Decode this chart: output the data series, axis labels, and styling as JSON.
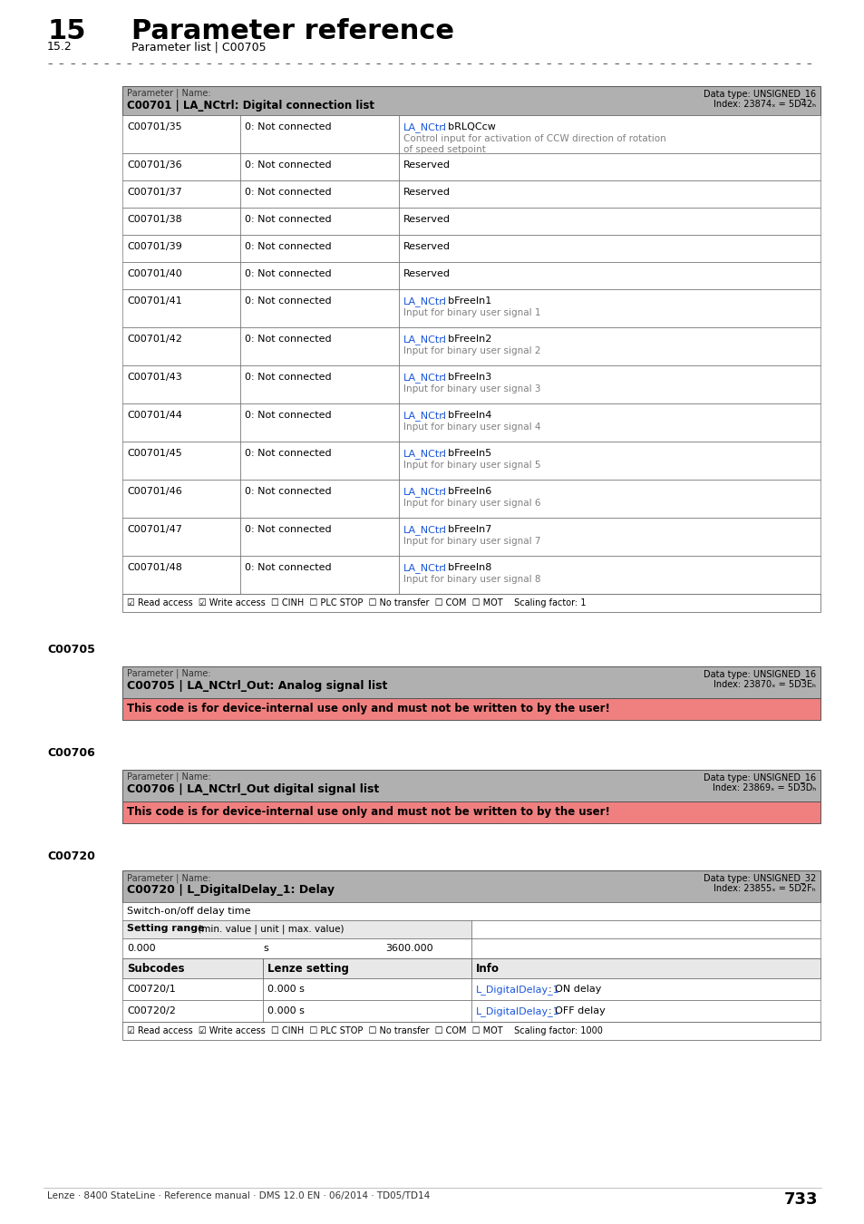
{
  "title_number": "15",
  "title_text": "Parameter reference",
  "subtitle_number": "15.2",
  "subtitle_text": "Parameter list | C00705",
  "page_number": "733",
  "footer_text": "Lenze · 8400 StateLine · Reference manual · DMS 12.0 EN · 06/2014 · TD05/TD14",
  "table1": {
    "header_param": "Parameter | Name:",
    "header_code": "C00701 | LA_NCtrl: Digital connection list",
    "header_dtype": "Data type: UNSIGNED_16",
    "header_index": "Index: 23874ₓ = 5D42ₕ",
    "rows": [
      {
        "code": "C00701/35",
        "setting": "0: Not connected",
        "info_blue": "LA_NCtrl: bRLQCcw",
        "info_gray": "Control input for activation of CCW direction of rotation\nof speed setpoint"
      },
      {
        "code": "C00701/36",
        "setting": "0: Not connected",
        "info_blue": "",
        "info_gray": "Reserved"
      },
      {
        "code": "C00701/37",
        "setting": "0: Not connected",
        "info_blue": "",
        "info_gray": "Reserved"
      },
      {
        "code": "C00701/38",
        "setting": "0: Not connected",
        "info_blue": "",
        "info_gray": "Reserved"
      },
      {
        "code": "C00701/39",
        "setting": "0: Not connected",
        "info_blue": "",
        "info_gray": "Reserved"
      },
      {
        "code": "C00701/40",
        "setting": "0: Not connected",
        "info_blue": "",
        "info_gray": "Reserved"
      },
      {
        "code": "C00701/41",
        "setting": "0: Not connected",
        "info_blue": "LA_NCtrl: bFreeIn1",
        "info_gray": "Input for binary user signal 1"
      },
      {
        "code": "C00701/42",
        "setting": "0: Not connected",
        "info_blue": "LA_NCtrl: bFreeIn2",
        "info_gray": "Input for binary user signal 2"
      },
      {
        "code": "C00701/43",
        "setting": "0: Not connected",
        "info_blue": "LA_NCtrl: bFreeIn3",
        "info_gray": "Input for binary user signal 3"
      },
      {
        "code": "C00701/44",
        "setting": "0: Not connected",
        "info_blue": "LA_NCtrl: bFreeIn4",
        "info_gray": "Input for binary user signal 4"
      },
      {
        "code": "C00701/45",
        "setting": "0: Not connected",
        "info_blue": "LA_NCtrl: bFreeIn5",
        "info_gray": "Input for binary user signal 5"
      },
      {
        "code": "C00701/46",
        "setting": "0: Not connected",
        "info_blue": "LA_NCtrl: bFreeIn6",
        "info_gray": "Input for binary user signal 6"
      },
      {
        "code": "C00701/47",
        "setting": "0: Not connected",
        "info_blue": "LA_NCtrl: bFreeIn7",
        "info_gray": "Input for binary user signal 7"
      },
      {
        "code": "C00701/48",
        "setting": "0: Not connected",
        "info_blue": "LA_NCtrl: bFreeIn8",
        "info_gray": "Input for binary user signal 8"
      }
    ],
    "footer": "☑ Read access  ☑ Write access  ☐ CINH  ☐ PLC STOP  ☐ No transfer  ☐ COM  ☐ MOT    Scaling factor: 1"
  },
  "section_c00705": {
    "label": "C00705",
    "header_param": "Parameter | Name:",
    "header_code": "C00705 | LA_NCtrl_Out: Analog signal list",
    "header_dtype": "Data type: UNSIGNED_16",
    "header_index": "Index: 23870ₓ = 5D3Eₕ",
    "warning": "This code is for device-internal use only and must not be written to by the user!"
  },
  "section_c00706": {
    "label": "C00706",
    "header_param": "Parameter | Name:",
    "header_code": "C00706 | LA_NCtrl_Out digital signal list",
    "header_dtype": "Data type: UNSIGNED_16",
    "header_index": "Index: 23869ₓ = 5D3Dₕ",
    "warning": "This code is for device-internal use only and must not be written to by the user!"
  },
  "section_c00720": {
    "label": "C00720",
    "header_param": "Parameter | Name:",
    "header_code": "C00720 | L_DigitalDelay_1: Delay",
    "header_dtype": "Data type: UNSIGNED_32",
    "header_index": "Index: 23855ₓ = 5D2Fₕ",
    "description": "Switch-on/off delay time",
    "setting_range_label": "Setting range (min. value | unit | max. value)",
    "setting_min": "0.000",
    "setting_unit": "s",
    "setting_max": "3600.000",
    "subcodes_header": [
      "Subcodes",
      "Lenze setting",
      "Info"
    ],
    "subcodes": [
      {
        "code": "C00720/1",
        "setting": "0.000 s",
        "info_blue": "L_DigitalDelay_1:",
        "info_text": "ON delay"
      },
      {
        "code": "C00720/2",
        "setting": "0.000 s",
        "info_blue": "L_DigitalDelay_1:",
        "info_text": "OFF delay"
      }
    ],
    "footer": "☑ Read access  ☑ Write access  ☐ CINH  ☐ PLC STOP  ☐ No transfer  ☐ COM  ☐ MOT    Scaling factor: 1000"
  },
  "colors": {
    "header_bg": "#b0b0b0",
    "row_bg_white": "#ffffff",
    "row_bg_light": "#f0f0f0",
    "border": "#555555",
    "blue_link": "#1a56db",
    "gray_text": "#808080",
    "red_warning": "#f08080",
    "section_label_color": "#1a1a1a",
    "dashed_line": "#555555",
    "footer_bg": "#e8e8e8"
  }
}
